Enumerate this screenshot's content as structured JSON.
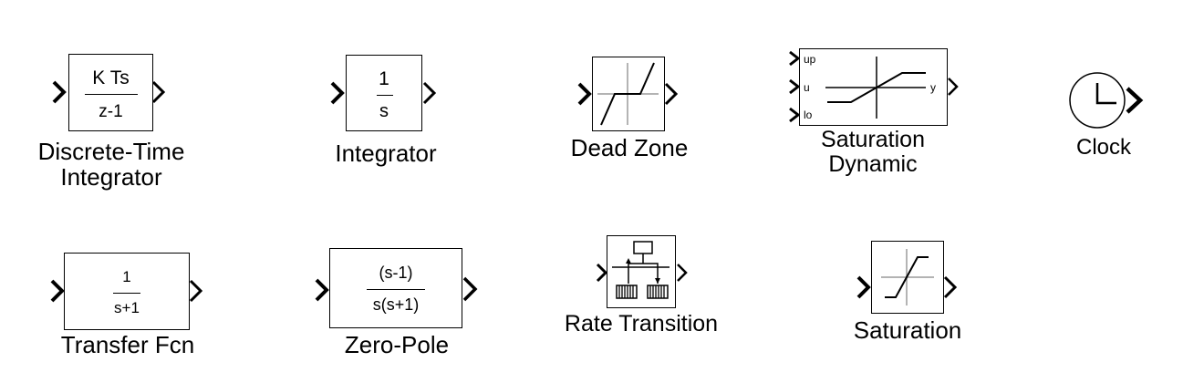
{
  "blocks": {
    "discrete_time_integrator": {
      "numerator": "K Ts",
      "denominator": "z-1",
      "label_line1": "Discrete-Time",
      "label_line2": "Integrator"
    },
    "integrator": {
      "numerator": "1",
      "denominator": "s",
      "label": "Integrator"
    },
    "dead_zone": {
      "label": "Dead Zone"
    },
    "saturation_dynamic": {
      "port_up": "up",
      "port_u": "u",
      "port_lo": "lo",
      "port_y": "y",
      "label_line1": "Saturation",
      "label_line2": "Dynamic"
    },
    "clock": {
      "label": "Clock"
    },
    "transfer_fcn": {
      "numerator": "1",
      "denominator": "s+1",
      "label": "Transfer Fcn"
    },
    "zero_pole": {
      "numerator": "(s-1)",
      "denominator": "s(s+1)",
      "label": "Zero-Pole"
    },
    "rate_transition": {
      "label": "Rate Transition"
    },
    "saturation": {
      "label": "Saturation"
    }
  }
}
